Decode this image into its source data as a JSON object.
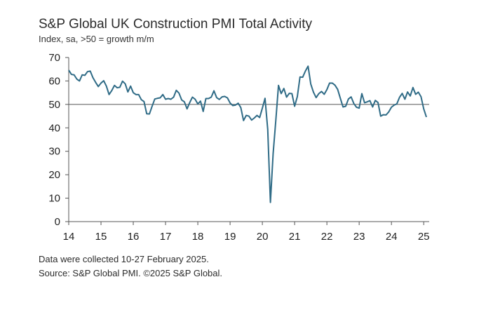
{
  "header": {
    "title": "S&P Global UK Construction PMI Total Activity",
    "subtitle": "Index, sa, >50 = growth m/m"
  },
  "footer": {
    "note": "Data were collected 10-27 February 2025.",
    "source": "Source: S&P Global PMI. ©2025 S&P Global."
  },
  "colors": {
    "line": "#2f6b86",
    "axis": "#555555",
    "reference": "#555555"
  },
  "chart_data": {
    "type": "line",
    "title": "S&P Global UK Construction PMI Total Activity",
    "subtitle": "Index, sa, >50 = growth m/m",
    "xlabel": "",
    "ylabel": "",
    "xlim": [
      2014.0,
      2025.17
    ],
    "ylim": [
      0,
      70
    ],
    "y_ticks": [
      0,
      10,
      20,
      30,
      40,
      50,
      60,
      70
    ],
    "x_ticks": [
      {
        "value": 2014,
        "label": "14"
      },
      {
        "value": 2015,
        "label": "15"
      },
      {
        "value": 2016,
        "label": "16"
      },
      {
        "value": 2017,
        "label": "17"
      },
      {
        "value": 2018,
        "label": "18"
      },
      {
        "value": 2019,
        "label": "19"
      },
      {
        "value": 2020,
        "label": "20"
      },
      {
        "value": 2021,
        "label": "21"
      },
      {
        "value": 2022,
        "label": "22"
      },
      {
        "value": 2023,
        "label": "23"
      },
      {
        "value": 2024,
        "label": "24"
      },
      {
        "value": 2025,
        "label": "25"
      }
    ],
    "reference_line": 50,
    "grid": false,
    "series": [
      {
        "name": "UK Construction PMI Total Activity",
        "start": "2014-01",
        "frequency": "monthly",
        "values": [
          64.6,
          62.8,
          62.6,
          60.8,
          60.0,
          62.6,
          62.4,
          64.0,
          64.2,
          61.4,
          59.4,
          57.6,
          59.1,
          60.1,
          57.8,
          54.2,
          55.9,
          58.1,
          57.1,
          57.3,
          59.9,
          58.8,
          55.3,
          57.8,
          55.0,
          54.2,
          54.2,
          52.0,
          51.2,
          46.0,
          45.9,
          49.2,
          52.3,
          52.6,
          52.8,
          54.2,
          52.2,
          52.5,
          52.2,
          53.1,
          56.0,
          54.8,
          51.9,
          51.1,
          48.1,
          50.8,
          53.1,
          52.2,
          50.2,
          51.4,
          47.0,
          52.5,
          52.5,
          53.1,
          55.8,
          52.9,
          52.1,
          53.2,
          53.4,
          52.8,
          50.6,
          49.5,
          49.7,
          50.5,
          48.6,
          43.1,
          45.3,
          45.0,
          43.3,
          44.2,
          45.3,
          44.4,
          48.4,
          52.6,
          39.3,
          8.2,
          28.9,
          43.1,
          58.1,
          54.6,
          56.8,
          53.1,
          54.7,
          54.6,
          49.2,
          53.3,
          61.7,
          61.6,
          64.2,
          66.3,
          58.7,
          55.2,
          52.9,
          54.6,
          55.5,
          54.3,
          56.3,
          59.1,
          59.1,
          58.2,
          56.4,
          52.6,
          48.9,
          49.2,
          52.3,
          53.2,
          50.4,
          48.8,
          48.4,
          54.6,
          50.7,
          51.1,
          51.6,
          48.9,
          51.7,
          50.8,
          45.0,
          45.6,
          45.5,
          46.8,
          48.8,
          49.7,
          50.2,
          53.0,
          54.7,
          52.2,
          55.3,
          53.6,
          57.2,
          54.3,
          55.2,
          53.3,
          48.1,
          44.6
        ]
      }
    ]
  }
}
